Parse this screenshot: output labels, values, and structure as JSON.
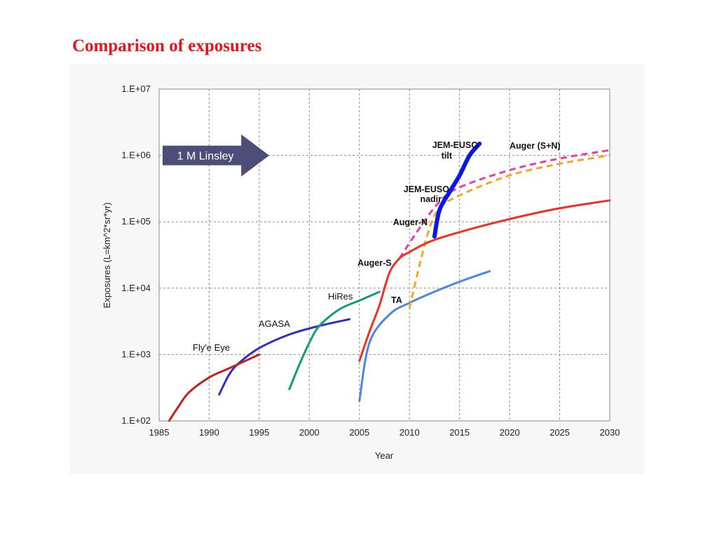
{
  "page": {
    "title": "Comparison of exposures"
  },
  "chart_data": {
    "type": "line",
    "title": "",
    "xlabel": "Year",
    "ylabel": "Exposures (L=km^2*sr*yr)",
    "xlim": [
      1985,
      2030
    ],
    "ylim": [
      100,
      10000000
    ],
    "y_scale": "log",
    "grid": true,
    "x_ticks": [
      "1985",
      "1990",
      "1995",
      "2000",
      "2005",
      "2010",
      "2015",
      "2020",
      "2025",
      "2030"
    ],
    "y_ticks": [
      "1.E+02",
      "1.E+03",
      "1.E+04",
      "1.E+05",
      "1.E+06",
      "1.E+07"
    ],
    "annotation": {
      "text": "1 M Linsley",
      "x_start": 1985,
      "x_end": 1996,
      "y": 1000000,
      "color": "#4d4d7a"
    },
    "series": [
      {
        "name": "Fly'e Eye",
        "color": "#c0201e",
        "style": "solid",
        "points": [
          [
            1986,
            100
          ],
          [
            1987,
            170
          ],
          [
            1988,
            270
          ],
          [
            1990,
            450
          ],
          [
            1992,
            620
          ],
          [
            1995,
            1000
          ]
        ]
      },
      {
        "name": "AGASA",
        "color": "#2f2fc4",
        "style": "solid",
        "points": [
          [
            1991,
            250
          ],
          [
            1992,
            500
          ],
          [
            1993,
            750
          ],
          [
            1995,
            1250
          ],
          [
            1998,
            2000
          ],
          [
            2001,
            2700
          ],
          [
            2004,
            3400
          ]
        ]
      },
      {
        "name": "HiRes",
        "color": "#149c74",
        "style": "solid",
        "points": [
          [
            1998,
            300
          ],
          [
            1999,
            700
          ],
          [
            2000,
            1500
          ],
          [
            2001,
            2700
          ],
          [
            2003,
            4800
          ],
          [
            2005,
            6500
          ],
          [
            2007,
            8800
          ]
        ]
      },
      {
        "name": "Auger-S",
        "color": "#f03024",
        "style": "solid",
        "points": [
          [
            2005,
            800
          ],
          [
            2006,
            2200
          ],
          [
            2007,
            5500
          ],
          [
            2008,
            17000
          ],
          [
            2009,
            28000
          ],
          [
            2010,
            35000
          ],
          [
            2012,
            50000
          ],
          [
            2015,
            70000
          ],
          [
            2020,
            110000
          ],
          [
            2025,
            160000
          ],
          [
            2030,
            210000
          ]
        ]
      },
      {
        "name": "TA",
        "color": "#4a86e8",
        "style": "solid",
        "points": [
          [
            2005,
            200
          ],
          [
            2006,
            1500
          ],
          [
            2008,
            4000
          ],
          [
            2010,
            6000
          ],
          [
            2013,
            9500
          ],
          [
            2015,
            12500
          ],
          [
            2018,
            18000
          ]
        ]
      },
      {
        "name": "Auger (S+N)",
        "color": "#ea3ea6",
        "style": "dashed",
        "points": [
          [
            2009,
            28000
          ],
          [
            2011,
            80000
          ],
          [
            2013,
            200000
          ],
          [
            2015,
            330000
          ],
          [
            2020,
            600000
          ],
          [
            2025,
            900000
          ],
          [
            2030,
            1200000
          ]
        ]
      },
      {
        "name": "Auger-N",
        "color": "#f5a623",
        "style": "dashed",
        "points": [
          [
            2010,
            5000
          ],
          [
            2011,
            22000
          ],
          [
            2012,
            80000
          ],
          [
            2013,
            160000
          ],
          [
            2015,
            250000
          ],
          [
            2020,
            500000
          ],
          [
            2025,
            750000
          ],
          [
            2030,
            1000000
          ]
        ]
      },
      {
        "name": "JEM-EUSO",
        "color": "#0a18e6",
        "style": "solid-thick",
        "points": [
          [
            2012.5,
            60000
          ],
          [
            2013,
            150000
          ],
          [
            2014,
            280000
          ],
          [
            2015,
            500000
          ],
          [
            2016,
            1000000
          ],
          [
            2017,
            1500000
          ]
        ]
      }
    ],
    "labels": [
      {
        "text": "Fly'e Eye",
        "weight": "normal"
      },
      {
        "text": "AGASA",
        "weight": "normal"
      },
      {
        "text": "HiRes",
        "weight": "normal"
      },
      {
        "text": "Auger-S",
        "weight": "bold"
      },
      {
        "text": "TA",
        "weight": "bold"
      },
      {
        "text": "Auger-N",
        "weight": "bold"
      },
      {
        "text": "JEM-EUSO",
        "weight": "bold"
      },
      {
        "text": "nadir",
        "weight": "bold"
      },
      {
        "text": "JEM-EUSO",
        "weight": "bold"
      },
      {
        "text": "tilt",
        "weight": "bold"
      },
      {
        "text": "Auger (S+N)",
        "weight": "bold"
      }
    ]
  }
}
